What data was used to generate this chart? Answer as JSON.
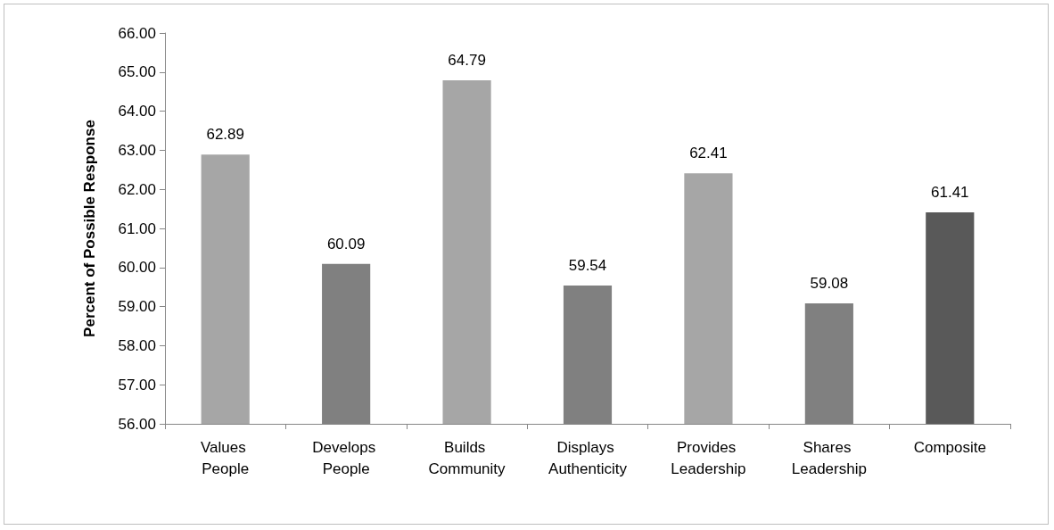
{
  "chart_data": {
    "type": "bar",
    "ylabel": "Percent of Possible Response",
    "categories": [
      "Values People",
      "Develops People",
      "Builds Community",
      "Displays Authenticity",
      "Provides Leadership",
      "Shares Leadership",
      "Composite"
    ],
    "values": [
      62.89,
      60.09,
      64.79,
      59.54,
      62.41,
      59.08,
      61.41
    ],
    "colors": [
      "#a6a6a6",
      "#808080",
      "#a6a6a6",
      "#808080",
      "#a6a6a6",
      "#808080",
      "#595959"
    ],
    "ylim": [
      56,
      66
    ],
    "yticks": [
      {
        "value": 56,
        "label": "56.00"
      },
      {
        "value": 57,
        "label": "57.00"
      },
      {
        "value": 58,
        "label": "58.00"
      },
      {
        "value": 59,
        "label": "59.00"
      },
      {
        "value": 60,
        "label": "60.00"
      },
      {
        "value": 61,
        "label": "61.00"
      },
      {
        "value": 62,
        "label": "62.00"
      },
      {
        "value": 63,
        "label": "63.00"
      },
      {
        "value": 64,
        "label": "64.00"
      },
      {
        "value": 65,
        "label": "65.00"
      },
      {
        "value": 66,
        "label": "66.00"
      }
    ],
    "data_labels": true,
    "grid": false
  }
}
